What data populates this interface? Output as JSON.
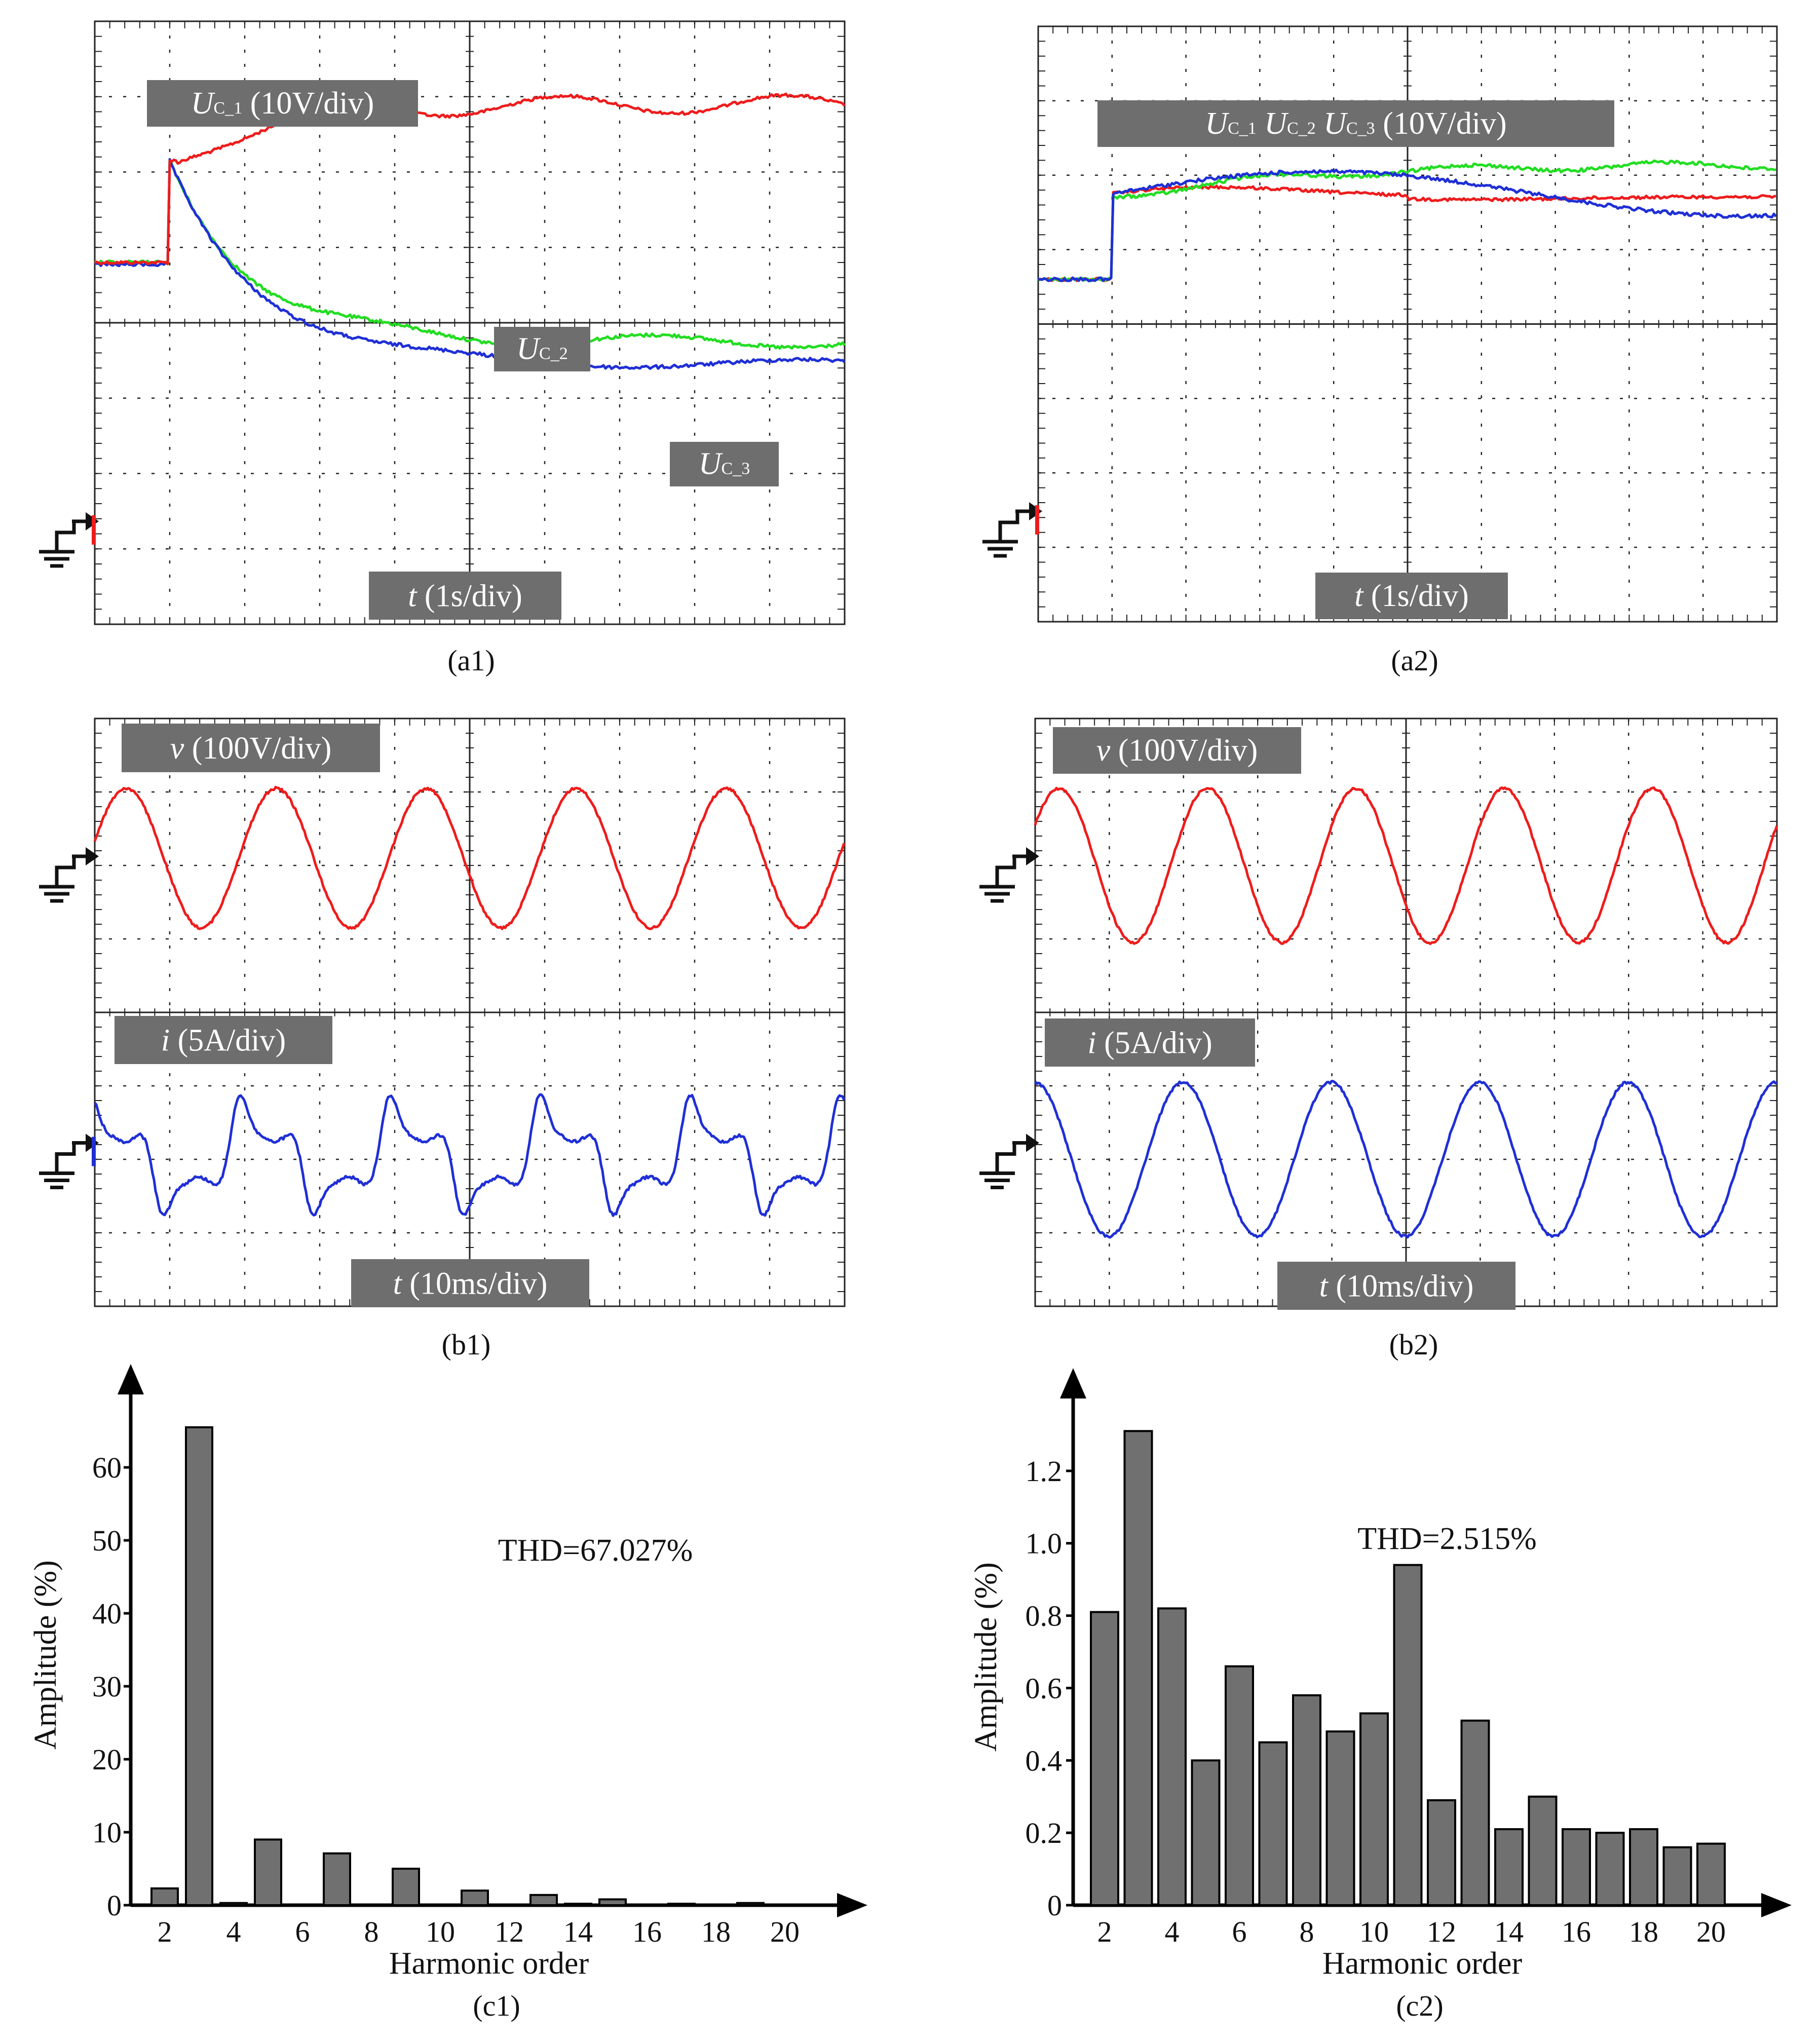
{
  "colors": {
    "red": "#ee1c1c",
    "green": "#22dd22",
    "blue": "#1f2fd6",
    "label_bg": "#6e6e6e",
    "bar": "#707070",
    "grid": "#222222"
  },
  "captions": {
    "a1": "(a1)",
    "a2": "(a2)",
    "b1": "(b1)",
    "b2": "(b2)",
    "c1": "(c1)",
    "c2": "(c2)"
  },
  "labels": {
    "a1_uc1_sym": "U",
    "a1_uc1_sub": "C_1",
    "a1_uc1_rest": " (10V/div)",
    "a1_uc2_sym": "U",
    "a1_uc2_sub": "C_2",
    "a1_uc3_sym": "U",
    "a1_uc3_sub": "C_3",
    "a_time_sym": "t",
    "a_time_rest": " (1s/div)",
    "a2_u_sym": "U",
    "a2_sub1": "C_1",
    "a2_sub2": "C_2",
    "a2_sub3": "C_3",
    "a2_rest": " (10V/div)",
    "b_v_sym": "v",
    "b_v_rest": " (100V/div)",
    "b_i_sym": "i",
    "b_i_rest": " (5A/div)",
    "b_time_sym": "t",
    "b_time_rest": " (10ms/div)"
  },
  "chart_data": [
    {
      "id": "a1",
      "type": "line",
      "time_scale": "1s/div",
      "volt_scale": "10V/div",
      "series": [
        {
          "name": "UC_1",
          "color": "red"
        },
        {
          "name": "UC_2",
          "color": "green"
        },
        {
          "name": "UC_3",
          "color": "blue"
        }
      ]
    },
    {
      "id": "a2",
      "type": "line",
      "time_scale": "1s/div",
      "volt_scale": "10V/div",
      "series": [
        {
          "name": "UC_1",
          "color": "red"
        },
        {
          "name": "UC_2",
          "color": "green"
        },
        {
          "name": "UC_3",
          "color": "blue"
        }
      ]
    },
    {
      "id": "b1",
      "type": "line",
      "time_scale": "10ms/div",
      "series": [
        {
          "name": "v",
          "scale": "100V/div",
          "color": "red"
        },
        {
          "name": "i",
          "scale": "5A/div",
          "color": "blue"
        }
      ]
    },
    {
      "id": "b2",
      "type": "line",
      "time_scale": "10ms/div",
      "series": [
        {
          "name": "v",
          "scale": "100V/div",
          "color": "red"
        },
        {
          "name": "i",
          "scale": "5A/div",
          "color": "blue"
        }
      ]
    },
    {
      "id": "c1",
      "type": "bar",
      "xlabel": "Harmonic order",
      "ylabel": "Amplitude (%)",
      "annotation": "THD=67.027%",
      "x": [
        2,
        3,
        4,
        5,
        6,
        7,
        8,
        9,
        10,
        11,
        12,
        13,
        14,
        15,
        16,
        17,
        18,
        19,
        20
      ],
      "values": [
        2.3,
        65.5,
        0.3,
        9.0,
        0.1,
        7.1,
        0.1,
        5.0,
        0.1,
        2.0,
        0.1,
        1.4,
        0.2,
        0.8,
        0.1,
        0.2,
        0.1,
        0.3,
        0.1
      ],
      "ylim": [
        0,
        70
      ],
      "yticks": [
        0,
        10,
        20,
        30,
        40,
        50,
        60
      ],
      "xtick_labels": [
        "2",
        "4",
        "6",
        "8",
        "10",
        "12",
        "14",
        "16",
        "18",
        "20"
      ]
    },
    {
      "id": "c2",
      "type": "bar",
      "xlabel": "Harmonic order",
      "ylabel": "Amplitude (%)",
      "annotation": "THD=2.515%",
      "x": [
        2,
        3,
        4,
        5,
        6,
        7,
        8,
        9,
        10,
        11,
        12,
        13,
        14,
        15,
        16,
        17,
        18,
        19,
        20
      ],
      "values": [
        0.81,
        1.31,
        0.82,
        0.4,
        0.66,
        0.45,
        0.58,
        0.48,
        0.53,
        0.94,
        0.29,
        0.51,
        0.21,
        0.3,
        0.21,
        0.2,
        0.21,
        0.16,
        0.17
      ],
      "ylim": [
        0,
        1.4
      ],
      "yticks": [
        "0",
        "0.2",
        "0.4",
        "0.6",
        "0.8",
        "1.0",
        "1.2"
      ],
      "xtick_labels": [
        "2",
        "4",
        "6",
        "8",
        "10",
        "12",
        "14",
        "16",
        "18",
        "20"
      ]
    }
  ]
}
